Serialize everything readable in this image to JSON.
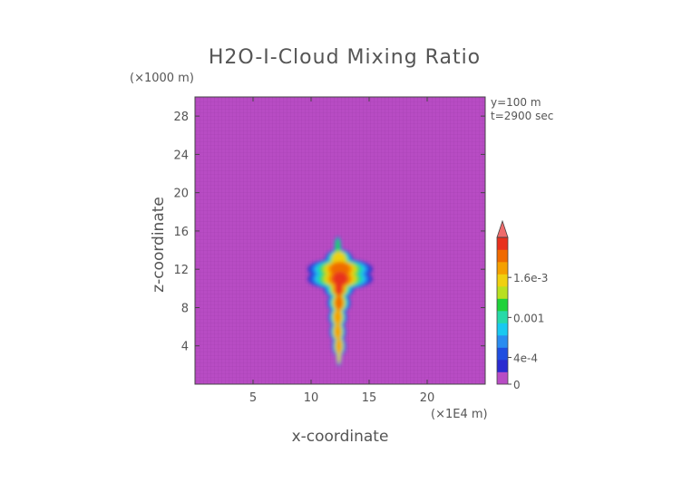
{
  "chart_data": {
    "type": "heatmap",
    "title": "H2O-I-Cloud Mixing Ratio",
    "xlabel": "x-coordinate",
    "ylabel": "z-coordinate",
    "x_unit": "(×1E4 m)",
    "y_unit": "(×1000 m)",
    "annotations": [
      "y=100 m",
      "t=2900 sec"
    ],
    "xlim": [
      0,
      25
    ],
    "ylim": [
      0,
      30
    ],
    "x_ticks": [
      5,
      10,
      15,
      20
    ],
    "y_ticks": [
      4,
      8,
      12,
      16,
      20,
      24,
      28
    ],
    "background_color": "#b84cc4",
    "colorbar": {
      "labels": [
        {
          "text": "0",
          "value": 0
        },
        {
          "text": "4e-4",
          "value": 0.0004
        },
        {
          "text": "0.001",
          "value": 0.001
        },
        {
          "text": "1.6e-3",
          "value": 0.0016
        }
      ],
      "range": [
        0,
        0.0022
      ],
      "colors": [
        "#b84cc4",
        "#2a2ad0",
        "#1f4ee0",
        "#2a8cf0",
        "#19c9f0",
        "#27d9a8",
        "#1fd23a",
        "#b8e020",
        "#f0d010",
        "#f5a000",
        "#f06a00",
        "#e8301c"
      ],
      "extend_color": "#ee6b6b"
    },
    "plume": [
      {
        "x": 12.4,
        "z": 3.0,
        "hw": 0.25,
        "level": 8
      },
      {
        "x": 12.4,
        "z": 4.0,
        "hw": 0.6,
        "level": 9
      },
      {
        "x": 12.3,
        "z": 5.5,
        "hw": 0.7,
        "level": 9
      },
      {
        "x": 12.3,
        "z": 7.0,
        "hw": 0.8,
        "level": 9
      },
      {
        "x": 12.4,
        "z": 8.5,
        "hw": 1.0,
        "level": 10
      },
      {
        "x": 12.4,
        "z": 10.0,
        "hw": 1.3,
        "level": 11
      },
      {
        "x": 12.5,
        "z": 11.0,
        "hw": 2.8,
        "level": 11
      },
      {
        "x": 12.5,
        "z": 12.0,
        "hw": 2.8,
        "level": 10
      },
      {
        "x": 12.4,
        "z": 13.0,
        "hw": 1.2,
        "level": 8
      },
      {
        "x": 12.3,
        "z": 14.3,
        "hw": 0.3,
        "level": 6
      }
    ]
  }
}
